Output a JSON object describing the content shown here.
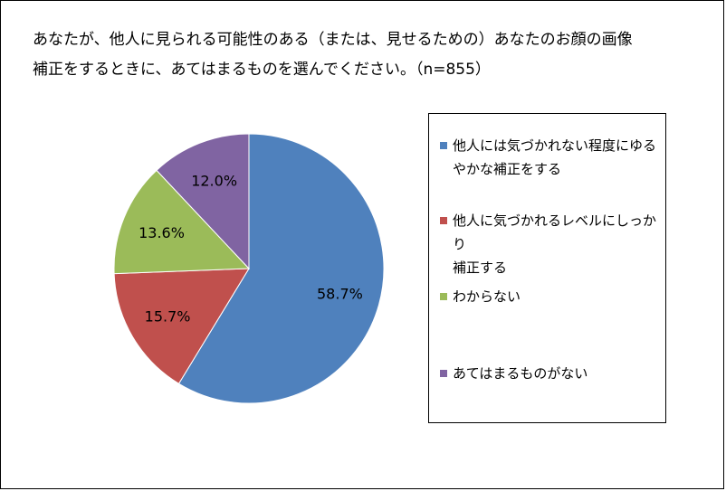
{
  "chart_data": {
    "type": "pie",
    "title_lines": [
      "あなたが、他人に見られる可能性のある（または、見せるための）あなたのお顔の画像",
      "補正をするときに、あてはまるものを選んでください。（n=855）"
    ],
    "slices": [
      {
        "label": "他人には気づかれない程度にゆるやかな補正をする",
        "legend_lines": [
          "他人には気づかれない程度にゆる",
          "やかな補正をする"
        ],
        "value": 58.7,
        "display": "58.7%",
        "color": "#4F81BD"
      },
      {
        "label": "他人に気づかれるレベルにしっかり補正する",
        "legend_lines": [
          "他人に気づかれるレベルにしっかり",
          "補正する"
        ],
        "value": 15.7,
        "display": "15.7%",
        "color": "#C0504D"
      },
      {
        "label": "わからない",
        "legend_lines": [
          "わからない"
        ],
        "value": 13.6,
        "display": "13.6%",
        "color": "#9BBB59"
      },
      {
        "label": "あてはまるものがない",
        "legend_lines": [
          "あてはまるものがない"
        ],
        "value": 12.0,
        "display": "12.0%",
        "color": "#8064A2"
      }
    ],
    "start_angle": "12 o'clock",
    "direction": "clockwise",
    "legend_position": "right"
  }
}
